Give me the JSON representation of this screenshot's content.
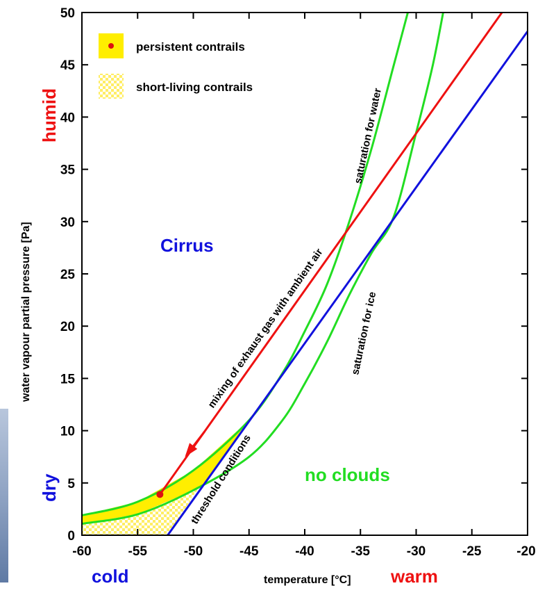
{
  "chart_data": {
    "type": "line",
    "xlabel": "temperature [°C]",
    "ylabel": "water vapour partial pressure [Pa]",
    "xlim": [
      -60,
      -20
    ],
    "ylim": [
      0,
      50
    ],
    "x_ticks": [
      -60,
      -55,
      -50,
      -45,
      -40,
      -35,
      -30,
      -25,
      -20
    ],
    "y_ticks": [
      0,
      5,
      10,
      15,
      20,
      25,
      30,
      35,
      40,
      45,
      50
    ],
    "grid": false,
    "legend_position": "top-left",
    "legend": {
      "persistent": "persistent contrails",
      "short": "short-living contrails"
    },
    "series": [
      {
        "key": "water",
        "label": "saturation for water",
        "color": "#22dd22",
        "points": [
          [
            -60,
            1.9
          ],
          [
            -55,
            3.2
          ],
          [
            -50,
            6.2
          ],
          [
            -45,
            11.0
          ],
          [
            -42,
            15.5
          ],
          [
            -40,
            19.5
          ],
          [
            -38,
            24.0
          ],
          [
            -36,
            30.0
          ],
          [
            -34,
            37.0
          ],
          [
            -32,
            45.0
          ],
          [
            -30.5,
            51.0
          ]
        ]
      },
      {
        "key": "ice",
        "label": "saturation for ice",
        "color": "#22dd22",
        "points": [
          [
            -60,
            1.1
          ],
          [
            -55,
            2.0
          ],
          [
            -50,
            4.3
          ],
          [
            -45,
            7.5
          ],
          [
            -42,
            11.0
          ],
          [
            -40,
            14.5
          ],
          [
            -38,
            18.5
          ],
          [
            -36,
            23.0
          ],
          [
            -34,
            27.0
          ],
          [
            -32,
            30.5
          ],
          [
            -30,
            38.5
          ],
          [
            -28.5,
            45.0
          ],
          [
            -27.4,
            51.0
          ]
        ]
      },
      {
        "key": "mixing",
        "label": "mixing of exhaust gas with ambient air",
        "color": "#ee1111",
        "points": [
          [
            -53,
            3.9
          ],
          [
            -22.3,
            50.0
          ]
        ]
      },
      {
        "key": "threshold",
        "label": "threshold conditions",
        "color": "#1111dd",
        "points": [
          [
            -52.3,
            0
          ],
          [
            -20,
            48.2
          ]
        ]
      }
    ],
    "marker": {
      "x": -53,
      "y": 3.9,
      "color": "#dd1111"
    },
    "arrow": {
      "from": [
        -49.0,
        9.9
      ],
      "to": [
        -50.6,
        7.7
      ],
      "color": "#ee1111"
    },
    "region_labels": {
      "cirrus": "Cirrus",
      "no_clouds": "no clouds",
      "humid": "humid",
      "dry": "dry",
      "cold": "cold",
      "warm": "warm"
    },
    "colors": {
      "fill_yellow": "#ffee00",
      "fill_checker": "#ffee66",
      "red": "#ee1111",
      "blue": "#1111dd",
      "green": "#22dd22"
    }
  }
}
